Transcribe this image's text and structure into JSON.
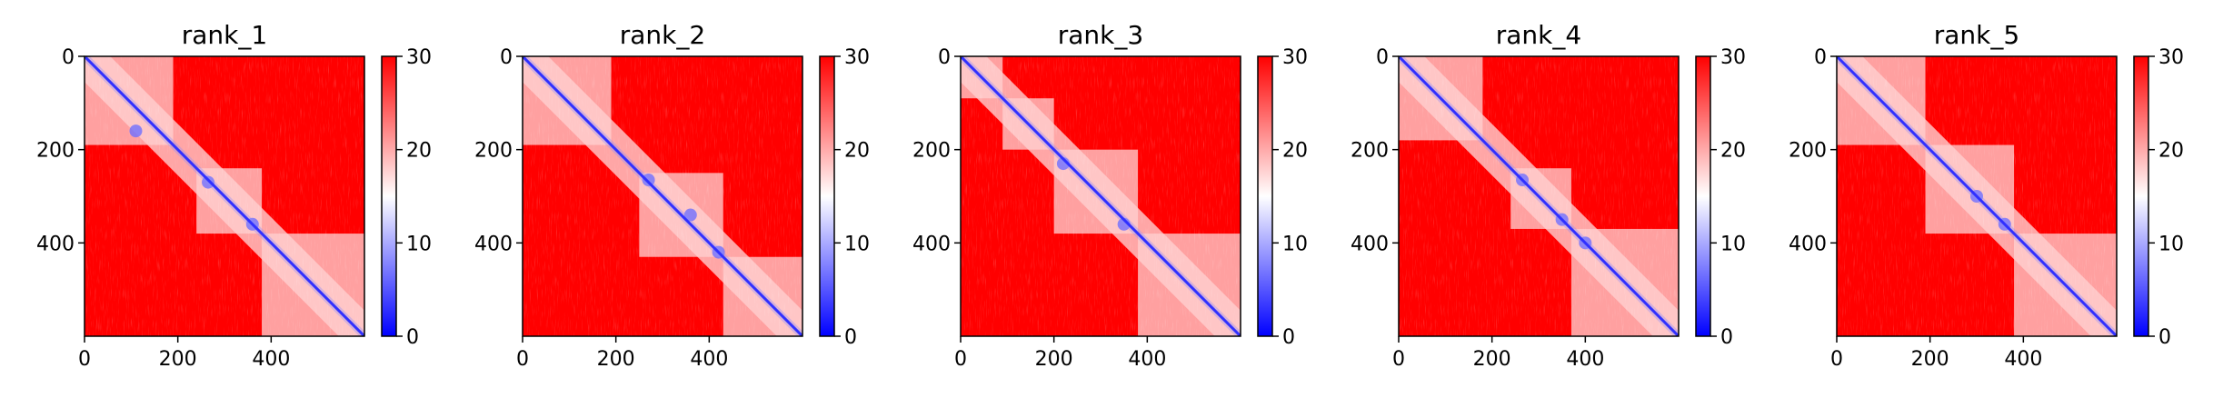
{
  "chart_data": [
    {
      "type": "heatmap",
      "title": "rank_1",
      "x_ticks": [
        "0",
        "200",
        "400"
      ],
      "y_ticks": [
        "0",
        "200",
        "400"
      ],
      "x_range": [
        0,
        600
      ],
      "y_range": [
        0,
        600
      ],
      "colorbar": {
        "ticks": [
          "0",
          "10",
          "20",
          "30"
        ],
        "range": [
          0,
          30
        ],
        "colors": [
          "#0000ff",
          "#ffffff",
          "#ff0000"
        ]
      }
    },
    {
      "type": "heatmap",
      "title": "rank_2",
      "x_ticks": [
        "0",
        "200",
        "400"
      ],
      "y_ticks": [
        "0",
        "200",
        "400"
      ],
      "x_range": [
        0,
        600
      ],
      "y_range": [
        0,
        600
      ],
      "colorbar": {
        "ticks": [
          "0",
          "10",
          "20",
          "30"
        ],
        "range": [
          0,
          30
        ],
        "colors": [
          "#0000ff",
          "#ffffff",
          "#ff0000"
        ]
      }
    },
    {
      "type": "heatmap",
      "title": "rank_3",
      "x_ticks": [
        "0",
        "200",
        "400"
      ],
      "y_ticks": [
        "0",
        "200",
        "400"
      ],
      "x_range": [
        0,
        600
      ],
      "y_range": [
        0,
        600
      ],
      "colorbar": {
        "ticks": [
          "0",
          "10",
          "20",
          "30"
        ],
        "range": [
          0,
          30
        ],
        "colors": [
          "#0000ff",
          "#ffffff",
          "#ff0000"
        ]
      }
    },
    {
      "type": "heatmap",
      "title": "rank_4",
      "x_ticks": [
        "0",
        "200",
        "400"
      ],
      "y_ticks": [
        "0",
        "200",
        "400"
      ],
      "x_range": [
        0,
        600
      ],
      "y_range": [
        0,
        600
      ],
      "colorbar": {
        "ticks": [
          "0",
          "10",
          "20",
          "30"
        ],
        "range": [
          0,
          30
        ],
        "colors": [
          "#0000ff",
          "#ffffff",
          "#ff0000"
        ]
      }
    },
    {
      "type": "heatmap",
      "title": "rank_5",
      "x_ticks": [
        "0",
        "200",
        "400"
      ],
      "y_ticks": [
        "0",
        "200",
        "400"
      ],
      "x_range": [
        0,
        600
      ],
      "y_range": [
        0,
        600
      ],
      "colorbar": {
        "ticks": [
          "0",
          "10",
          "20",
          "30"
        ],
        "range": [
          0,
          30
        ],
        "colors": [
          "#0000ff",
          "#ffffff",
          "#ff0000"
        ]
      }
    }
  ]
}
